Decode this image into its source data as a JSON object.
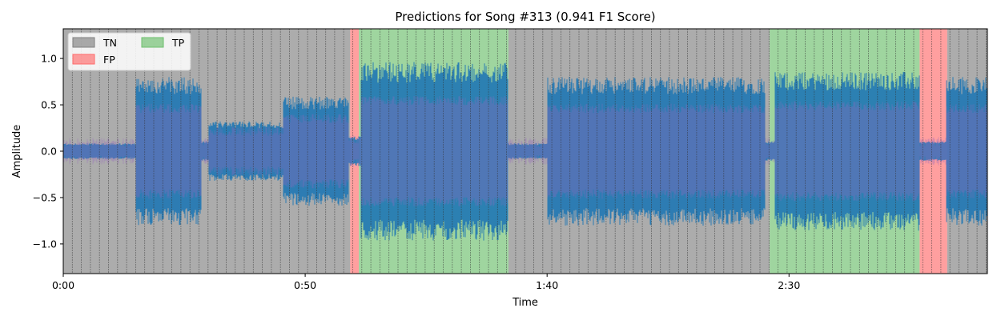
{
  "chart_data": {
    "type": "area",
    "title": "Predictions for Song #313 (0.941 F1 Score)",
    "xlabel": "Time",
    "ylabel": "Amplitude",
    "xlim_seconds": [
      0,
      191
    ],
    "ylim": [
      -1.32,
      1.32
    ],
    "x_ticks": [
      {
        "value": 0,
        "label": "0:00"
      },
      {
        "value": 50,
        "label": "0:50"
      },
      {
        "value": 100,
        "label": "1:40"
      },
      {
        "value": 150,
        "label": "2:30"
      }
    ],
    "y_ticks": [
      {
        "value": 1.0,
        "label": "1.0"
      },
      {
        "value": 0.5,
        "label": "0.5"
      },
      {
        "value": 0.0,
        "label": "0.0"
      },
      {
        "value": -0.5,
        "label": "−0.5"
      },
      {
        "value": -1.0,
        "label": "−1.0"
      }
    ],
    "legend": {
      "placement": "top-left",
      "entries": [
        {
          "key": "TN",
          "label": "TN",
          "color": "#808080"
        },
        {
          "key": "FP",
          "label": "FP",
          "color": "#ff6b6b"
        },
        {
          "key": "TP",
          "label": "TP",
          "color": "#6cbf6c"
        }
      ]
    },
    "segments": [
      {
        "class": "TN",
        "start": 0,
        "end": 59.3
      },
      {
        "class": "FP",
        "start": 59.3,
        "end": 61.1
      },
      {
        "class": "TP",
        "start": 61.1,
        "end": 92
      },
      {
        "class": "TN",
        "start": 92,
        "end": 146
      },
      {
        "class": "TP",
        "start": 146,
        "end": 177
      },
      {
        "class": "FP",
        "start": 177,
        "end": 182.7
      },
      {
        "class": "TN",
        "start": 182.7,
        "end": 191
      }
    ],
    "beat_interval_seconds": 1.87,
    "waveform_envelope": [
      {
        "start": 0,
        "end": 15,
        "amplitude": 0.08
      },
      {
        "start": 15,
        "end": 28.5,
        "amplitude": 0.75
      },
      {
        "start": 28.5,
        "end": 30,
        "amplitude": 0.1
      },
      {
        "start": 30,
        "end": 45.5,
        "amplitude": 0.3
      },
      {
        "start": 45.5,
        "end": 59,
        "amplitude": 0.55
      },
      {
        "start": 59,
        "end": 61.5,
        "amplitude": 0.15
      },
      {
        "start": 61.5,
        "end": 92,
        "amplitude": 0.9
      },
      {
        "start": 92,
        "end": 100,
        "amplitude": 0.08
      },
      {
        "start": 100,
        "end": 145,
        "amplitude": 0.75
      },
      {
        "start": 145,
        "end": 147,
        "amplitude": 0.1
      },
      {
        "start": 147,
        "end": 177,
        "amplitude": 0.8
      },
      {
        "start": 177,
        "end": 182.5,
        "amplitude": 0.1
      },
      {
        "start": 182.5,
        "end": 191,
        "amplitude": 0.75
      }
    ],
    "colors": {
      "waveform": "#1f77b4",
      "onset_overlay": "#9467bd",
      "beat_lines": "#333333"
    },
    "grid": false
  }
}
